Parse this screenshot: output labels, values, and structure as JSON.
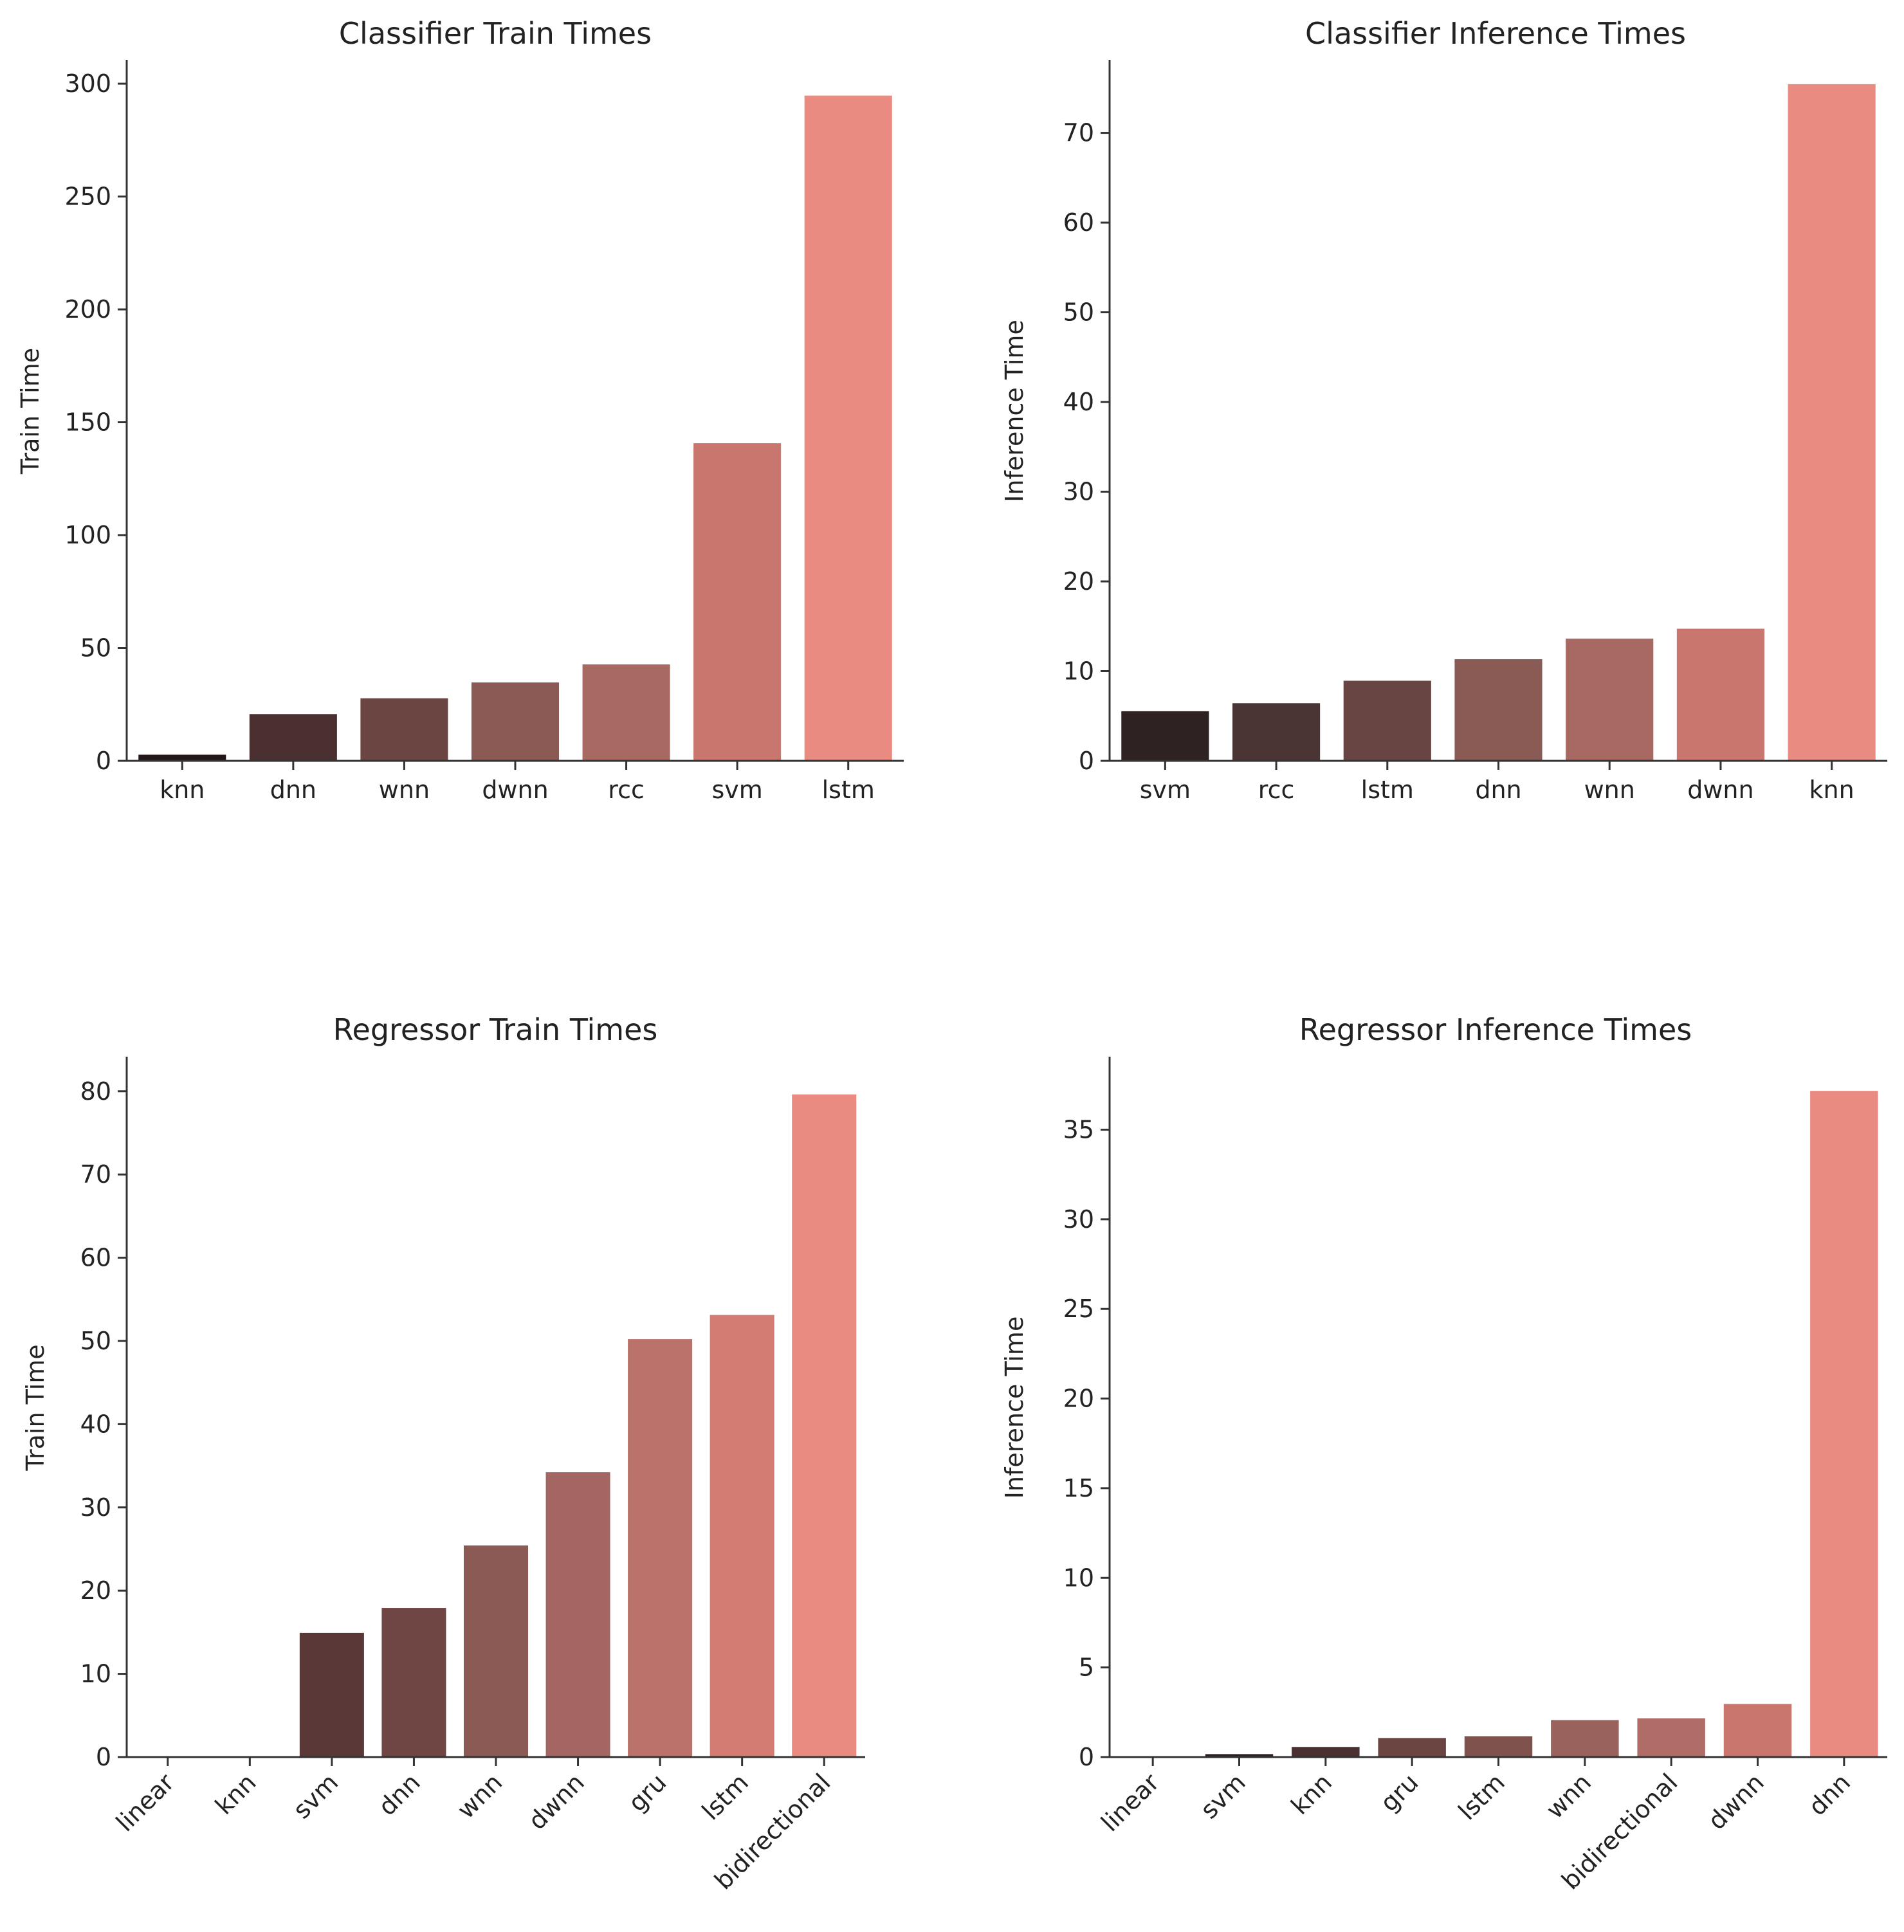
{
  "chart_data": [
    {
      "type": "bar",
      "title": "Classifier Train Times",
      "xlabel": "",
      "ylabel": "Train Time",
      "categories": [
        "knn",
        "dnn",
        "wnn",
        "dwnn",
        "rcc",
        "svm",
        "lstm"
      ],
      "values": [
        3,
        21,
        28,
        35,
        43,
        141,
        295
      ],
      "ylim": [
        0,
        310
      ],
      "yticks": [
        0,
        50,
        100,
        150,
        200,
        250,
        300
      ],
      "colors": [
        "#221616",
        "#4a3030",
        "#6b4542",
        "#8b5a55",
        "#a96963",
        "#c9776e",
        "#e98b80"
      ],
      "rotate_xticks": false
    },
    {
      "type": "bar",
      "title": "Classifier Inference Times",
      "xlabel": "",
      "ylabel": "Inference Time",
      "categories": [
        "svm",
        "rcc",
        "lstm",
        "dnn",
        "wnn",
        "dwnn",
        "knn"
      ],
      "values": [
        5.6,
        6.5,
        9.0,
        11.4,
        13.7,
        14.8,
        75.5
      ],
      "ylim": [
        0,
        78
      ],
      "yticks": [
        0,
        10,
        20,
        30,
        40,
        50,
        60,
        70
      ],
      "colors": [
        "#2e2222",
        "#4a3434",
        "#684542",
        "#8a5a55",
        "#a96963",
        "#c9776e",
        "#e98b80"
      ],
      "rotate_xticks": false
    },
    {
      "type": "bar",
      "title": "Regressor Train Times",
      "xlabel": "",
      "ylabel": "Train Time",
      "categories": [
        "linear",
        "knn",
        "svm",
        "dnn",
        "wnn",
        "dwnn",
        "gru",
        "lstm",
        "bidirectional"
      ],
      "values": [
        0.05,
        0.1,
        15,
        18,
        25.5,
        34.3,
        50.3,
        53.2,
        79.7
      ],
      "ylim": [
        0,
        84
      ],
      "yticks": [
        0,
        10,
        20,
        30,
        40,
        50,
        60,
        70,
        80
      ],
      "colors": [
        "#1e1515",
        "#2e2020",
        "#5a3838",
        "#6f4644",
        "#8b5a55",
        "#a46663",
        "#ba726b",
        "#d27c73",
        "#e98b80"
      ],
      "rotate_xticks": true
    },
    {
      "type": "bar",
      "title": "Regressor Inference Times",
      "xlabel": "",
      "ylabel": "Inference Time",
      "categories": [
        "linear",
        "svm",
        "knn",
        "gru",
        "lstm",
        "wnn",
        "bidirectional",
        "dwnn",
        "dnn"
      ],
      "values": [
        0.02,
        0.2,
        0.6,
        1.1,
        1.2,
        2.1,
        2.2,
        3.0,
        37.2
      ],
      "ylim": [
        0,
        39
      ],
      "yticks": [
        0,
        5,
        10,
        15,
        20,
        25,
        30,
        35
      ],
      "colors": [
        "#1e1515",
        "#2e2020",
        "#4a3030",
        "#6b4542",
        "#7f524e",
        "#9a625d",
        "#b06d67",
        "#c9776e",
        "#e98b80"
      ],
      "rotate_xticks": true
    }
  ]
}
